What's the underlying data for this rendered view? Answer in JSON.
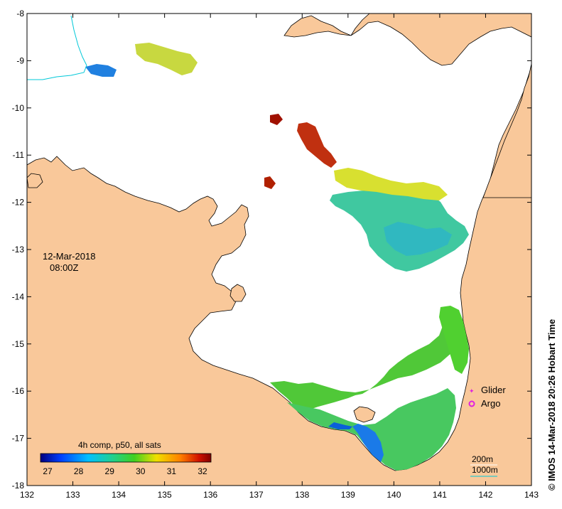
{
  "map": {
    "date": "12-Mar-2018",
    "time": "08:00Z",
    "credit": "© IMOS 14-Mar-2018 20:26 Hobart Time",
    "x_ticks": [
      "132",
      "133",
      "134",
      "135",
      "136",
      "137",
      "138",
      "139",
      "140",
      "141",
      "142",
      "143"
    ],
    "y_ticks": [
      "-8",
      "-9",
      "-10",
      "-11",
      "-12",
      "-13",
      "-14",
      "-15",
      "-16",
      "-17",
      "-18"
    ],
    "colorbar": {
      "title": "4h comp, p50, all sats",
      "ticks": [
        "27",
        "28",
        "29",
        "30",
        "31",
        "32"
      ],
      "colors": [
        "#000080",
        "#0050ff",
        "#00c8ff",
        "#20d080",
        "#30d020",
        "#f0e000",
        "#ff8000",
        "#c00000",
        "#800000"
      ]
    },
    "legend": {
      "glider": "Glider",
      "argo": "Argo",
      "glider_color": "#e020e0",
      "argo_color": "#e020e0"
    },
    "isobaths": {
      "line1": "200m",
      "line2": "1000m",
      "line1_color": "#ffffff",
      "line2_color": "#00c8d8"
    },
    "land_color": "#f9c89a",
    "coast_color": "#000000"
  }
}
